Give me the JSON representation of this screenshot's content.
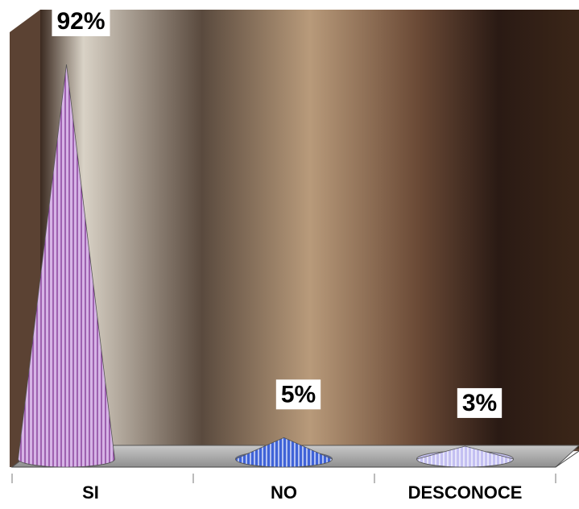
{
  "chart_data": {
    "type": "cone",
    "categories": [
      "SI",
      "NO",
      "DESCONOCE"
    ],
    "values": [
      92,
      5,
      3
    ],
    "value_labels": [
      "92%",
      "5%",
      "3%"
    ],
    "colors": [
      "#d6b3e6",
      "#3f63d8",
      "#c4c0f2"
    ],
    "stripe_colors": [
      "#7a2a8c",
      "#ffffff",
      "#ffffff"
    ]
  }
}
